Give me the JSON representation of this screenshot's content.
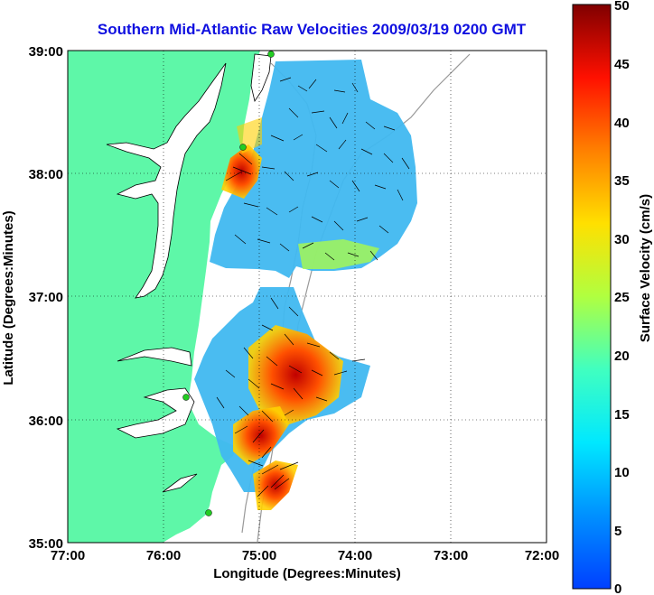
{
  "title": "Southern Mid-Atlantic Raw Velocities 2009/03/19 0200 GMT",
  "xlabel": "Longitude (Degrees:Minutes)",
  "ylabel": "Latitude (Degrees:Minutes)",
  "colorbar_label": "Surface Velocity (cm/s)",
  "x_ticks": [
    "77:00",
    "76:00",
    "75:00",
    "74:00",
    "73:00",
    "72:00"
  ],
  "y_ticks": [
    "39:00",
    "38:00",
    "37:00",
    "36:00",
    "35:00"
  ],
  "colorbar_ticks": [
    "50",
    "45",
    "40",
    "35",
    "30",
    "25",
    "20",
    "15",
    "10",
    "5",
    "0"
  ],
  "colors": {
    "land": "#5ef7a8",
    "title": "#1010e0",
    "gridline": "#000000",
    "station": "#22cc22"
  },
  "colorscale": "jet",
  "chart_data": {
    "type": "heatmap",
    "xlim": [
      -77,
      -72
    ],
    "ylim": [
      35,
      39
    ],
    "colorbar_range": [
      0,
      50
    ],
    "grid": true,
    "regions": [
      {
        "name": "",
        "velocity_range_cm_s": [
          5,
          15
        ]
      },
      {
        "name": "",
        "velocity_range_cm_s": [
          20,
          50
        ]
      }
    ]
  }
}
